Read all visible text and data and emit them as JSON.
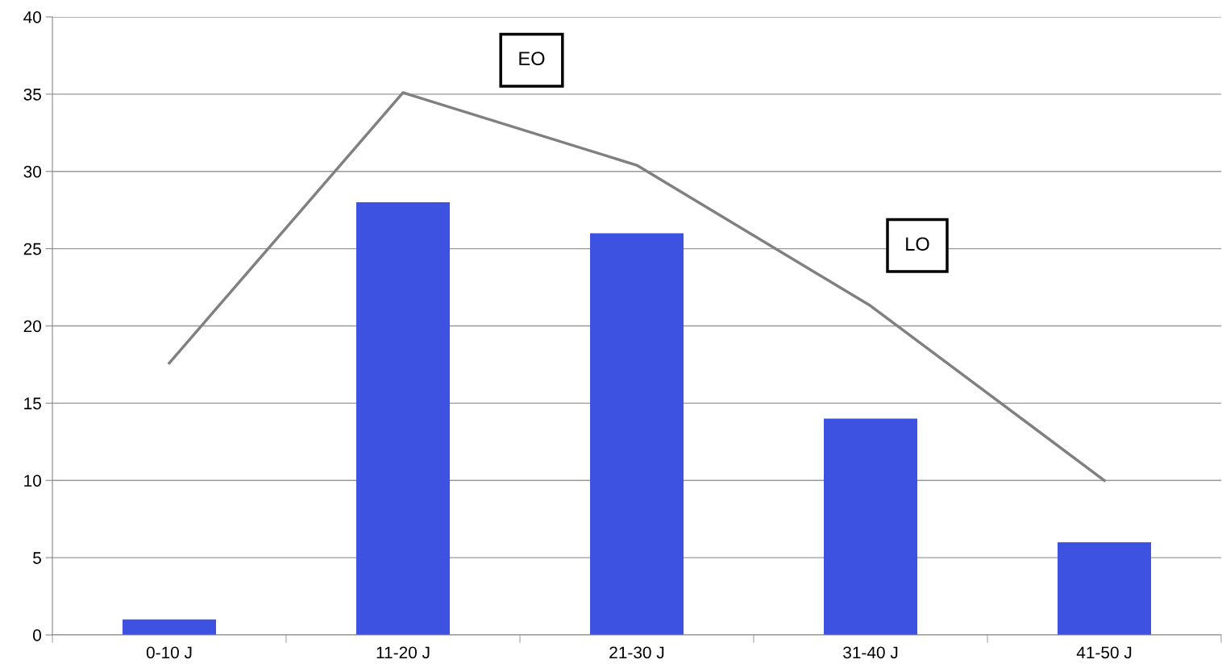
{
  "chart_data": {
    "type": "bar",
    "series": [
      {
        "color": "#3d52e0",
        "values": [
          1,
          28,
          26,
          14,
          6
        ]
      },
      {
        "type": "line",
        "color": "#808080",
        "values": [
          17.6,
          35.1,
          30.4,
          21.3,
          10
        ]
      }
    ],
    "categories": [
      "0-10 J",
      "11-20 J",
      "21-30 J",
      "31-40 J",
      "41-50 J"
    ],
    "ylim": [
      0,
      40
    ],
    "yticks": [
      0,
      5,
      10,
      15,
      20,
      25,
      30,
      35,
      40
    ],
    "grid": "y",
    "legend": false,
    "marker": "none",
    "annotations": [
      "EO",
      "LO"
    ]
  }
}
